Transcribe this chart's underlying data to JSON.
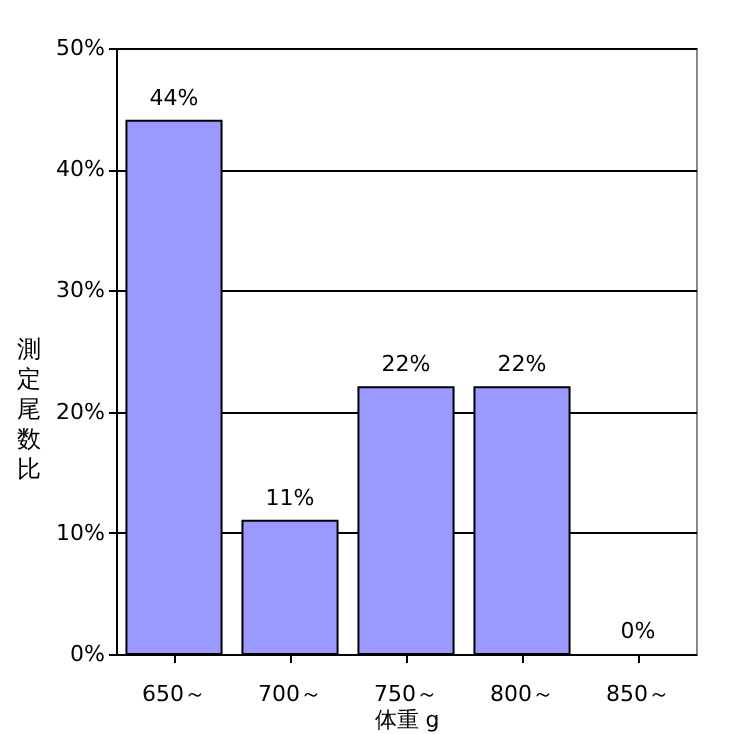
{
  "chart_data": {
    "type": "bar",
    "categories": [
      "650～",
      "700～",
      "750～",
      "800～",
      "850～"
    ],
    "values": [
      44,
      11,
      22,
      22,
      0
    ],
    "value_labels": [
      "44%",
      "11%",
      "22%",
      "22%",
      "0%"
    ],
    "color": "#9999ff",
    "xlabel": "体重 g",
    "ylabel": "測定尾数比",
    "ylim": [
      0,
      50
    ],
    "yticks": [
      {
        "value": 0,
        "label": "0%"
      },
      {
        "value": 10,
        "label": "10%"
      },
      {
        "value": 20,
        "label": "20%"
      },
      {
        "value": 30,
        "label": "30%"
      },
      {
        "value": 40,
        "label": "40%"
      },
      {
        "value": 50,
        "label": "50%"
      }
    ],
    "grid": "y"
  }
}
